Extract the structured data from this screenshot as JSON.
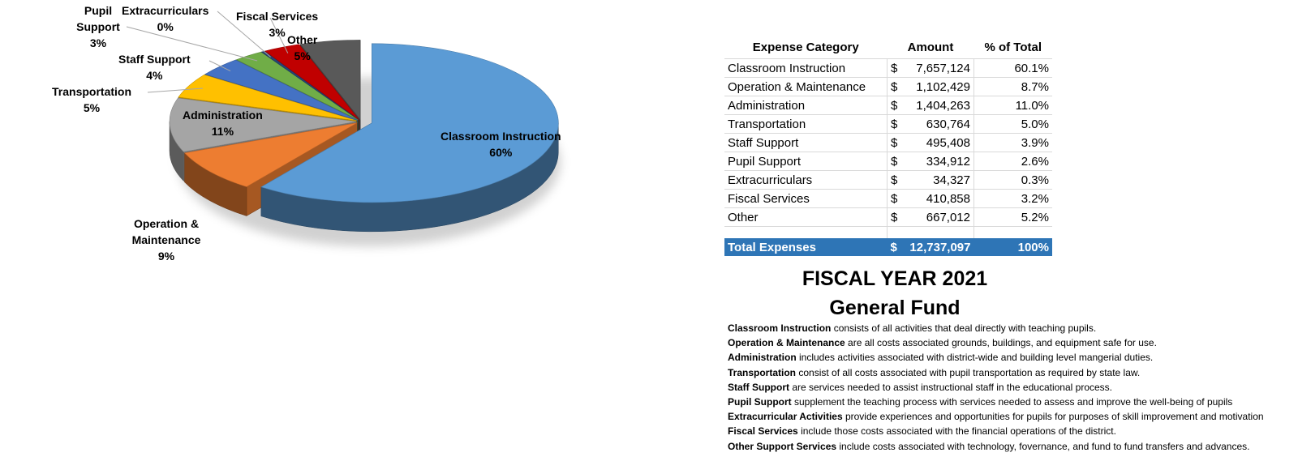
{
  "chart_data": {
    "type": "pie",
    "title": "",
    "slices": [
      {
        "label": "Classroom Instruction",
        "percent_label": "60%",
        "value": 60.1,
        "color": "#5b9bd5"
      },
      {
        "label": "Operation & Maintenance",
        "percent_label": "9%",
        "value": 8.7,
        "color": "#ed7d31"
      },
      {
        "label": "Administration",
        "percent_label": "11%",
        "value": 11.0,
        "color": "#a5a5a5"
      },
      {
        "label": "Transportation",
        "percent_label": "5%",
        "value": 5.0,
        "color": "#ffc000"
      },
      {
        "label": "Staff Support",
        "percent_label": "4%",
        "value": 3.9,
        "color": "#4472c4"
      },
      {
        "label": "Pupil Support",
        "percent_label": "3%",
        "value": 2.6,
        "color": "#70ad47"
      },
      {
        "label": "Extracurriculars",
        "percent_label": "0%",
        "value": 0.3,
        "color": "#264478"
      },
      {
        "label": "Fiscal Services",
        "percent_label": "3%",
        "value": 3.2,
        "color": "#c00000"
      },
      {
        "label": "Other",
        "percent_label": "5%",
        "value": 5.2,
        "color": "#595959"
      }
    ]
  },
  "table": {
    "headers": {
      "category": "Expense Category",
      "amount": "Amount",
      "percent": "% of Total"
    },
    "currency": "$",
    "rows": [
      {
        "category": "Classroom Instruction",
        "amount": "7,657,124",
        "percent": "60.1%"
      },
      {
        "category": "Operation & Maintenance",
        "amount": "1,102,429",
        "percent": "8.7%"
      },
      {
        "category": "Administration",
        "amount": "1,404,263",
        "percent": "11.0%"
      },
      {
        "category": "Transportation",
        "amount": "630,764",
        "percent": "5.0%"
      },
      {
        "category": "Staff Support",
        "amount": "495,408",
        "percent": "3.9%"
      },
      {
        "category": "Pupil Support",
        "amount": "334,912",
        "percent": "2.6%"
      },
      {
        "category": "Extracurriculars",
        "amount": "34,327",
        "percent": "0.3%"
      },
      {
        "category": "Fiscal Services",
        "amount": "410,858",
        "percent": "3.2%"
      },
      {
        "category": "Other",
        "amount": "667,012",
        "percent": "5.2%"
      }
    ],
    "total": {
      "category": "Total Expenses",
      "amount": "12,737,097",
      "percent": "100%"
    }
  },
  "heading": {
    "line1": "FISCAL YEAR 2021",
    "line2": "General Fund"
  },
  "notes": [
    {
      "term": "Classroom Instruction",
      "text": " consists of all activities that deal directly with teaching pupils."
    },
    {
      "term": "Operation & Maintenance",
      "text": " are all costs associated grounds, buildings, and equipment safe for use."
    },
    {
      "term": "Administration",
      "text": " includes activities associated with district-wide and building level mangerial duties."
    },
    {
      "term": "Transportation",
      "text": " consist of all costs associated with pupil transportation as required by state law."
    },
    {
      "term": "Staff Support",
      "text": " are services needed to assist instructional staff in the educational process."
    },
    {
      "term": "Pupil Support",
      "text": " supplement the teaching process with services needed to assess and improve the well-being of pupils"
    },
    {
      "term": "Extracurricular Activities",
      "text": " provide experiences and opportunities for pupils for purposes of skill improvement and motivation"
    },
    {
      "term": "Fiscal Services",
      "text": " include those costs associated with the financial operations of the district."
    },
    {
      "term": "Other Support Services",
      "text": " include costs associated with technology, fovernance, and fund to fund transfers and advances."
    }
  ]
}
